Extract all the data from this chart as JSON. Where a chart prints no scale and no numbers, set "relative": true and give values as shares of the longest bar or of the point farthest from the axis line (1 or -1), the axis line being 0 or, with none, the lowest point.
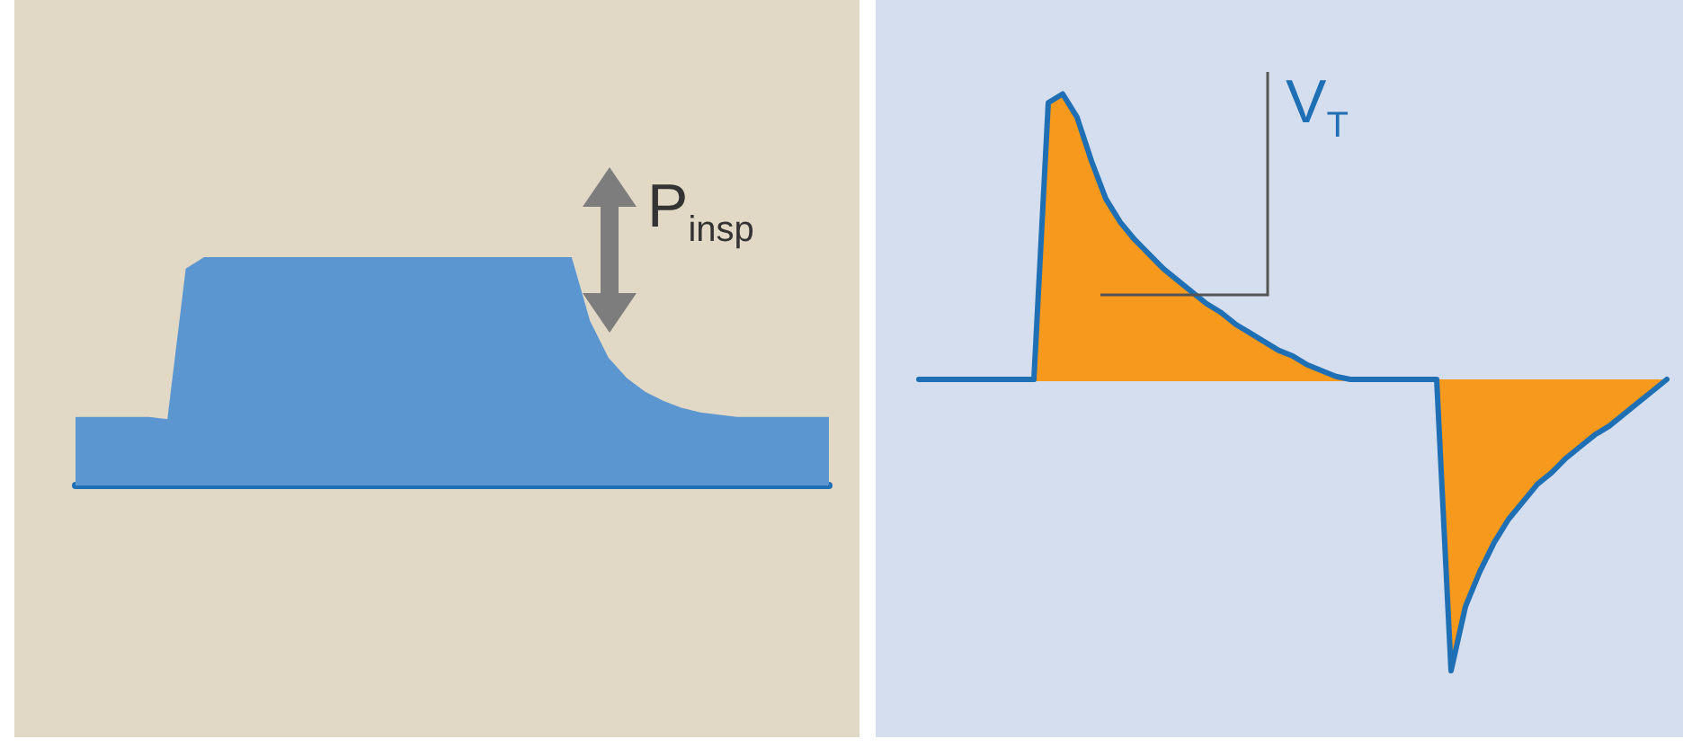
{
  "chart_data": [
    {
      "type": "area",
      "relative": true,
      "annotations": [
        "P$_{insp}$"
      ],
      "categories": [
        null,
        null,
        null,
        null,
        null,
        null,
        null,
        null,
        null,
        null,
        null,
        null,
        null,
        null,
        null,
        null,
        null,
        null,
        null,
        null,
        null,
        null,
        null,
        null,
        null,
        null,
        null,
        null,
        null,
        null,
        null,
        null,
        null,
        null,
        null,
        null,
        null,
        null,
        null,
        null,
        null,
        null
      ],
      "series": [
        {
          "color": "#5b96d0",
          "values": [
            0.3,
            0.3,
            0.3,
            0.3,
            0.3,
            0.29,
            0.95,
            1,
            1,
            1,
            1,
            1,
            1,
            1,
            1,
            1,
            1,
            1,
            1,
            1,
            1,
            1,
            1,
            1,
            1,
            1,
            1,
            1,
            0.72,
            0.56,
            0.47,
            0.41,
            0.37,
            0.34,
            0.32,
            0.31,
            0.3,
            0.3,
            0.3,
            0.3,
            0.3,
            0.3
          ]
        }
      ]
    },
    {
      "type": "area",
      "relative": true,
      "annotations": [
        "V$_{T}$"
      ],
      "categories": [
        null,
        null,
        null,
        null,
        null,
        null,
        null,
        null,
        null,
        null,
        null,
        null,
        null,
        null,
        null,
        null,
        null,
        null,
        null,
        null,
        null,
        null,
        null,
        null,
        null,
        null,
        null,
        null,
        null,
        null,
        null,
        null,
        null,
        null,
        null,
        null,
        null,
        null,
        null,
        null,
        null,
        null,
        null,
        null,
        null,
        null,
        null,
        null,
        null,
        null,
        null,
        null,
        null
      ],
      "series": [
        {
          "color": "#f7991c",
          "values": [
            0,
            0,
            0,
            0,
            0,
            0,
            0,
            0,
            0,
            0.95,
            0.98,
            0.9,
            0.75,
            0.62,
            0.54,
            0.48,
            0.43,
            0.38,
            0.34,
            0.3,
            0.26,
            0.23,
            0.19,
            0.16,
            0.13,
            0.1,
            0.08,
            0.05,
            0.03,
            0.01,
            0,
            0,
            0,
            0,
            0,
            0,
            0,
            -1,
            -0.78,
            -0.66,
            -0.56,
            -0.48,
            -0.42,
            -0.36,
            -0.32,
            -0.27,
            -0.23,
            -0.19,
            -0.16,
            -0.12,
            -0.08,
            -0.04,
            0
          ]
        }
      ]
    }
  ]
}
